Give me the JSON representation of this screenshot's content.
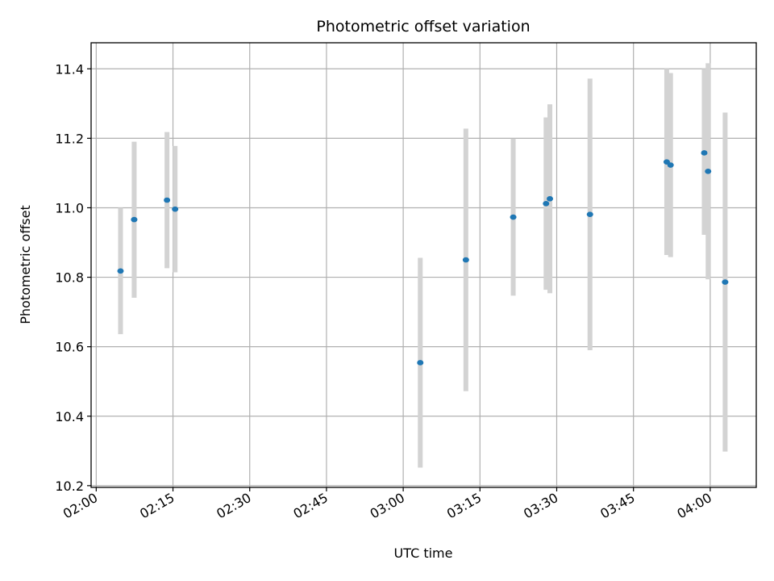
{
  "chart_data": {
    "type": "scatter",
    "title": "Photometric offset variation",
    "xlabel": "UTC time",
    "ylabel": "Photometric offset",
    "xlim": [
      "01:59",
      "04:09"
    ],
    "ylim": [
      10.195,
      11.475
    ],
    "x_ticks": [
      "02:00",
      "02:15",
      "02:30",
      "02:45",
      "03:00",
      "03:15",
      "03:30",
      "03:45",
      "04:00"
    ],
    "y_ticks": [
      "10.2",
      "10.4",
      "10.6",
      "10.8",
      "11.0",
      "11.2",
      "11.4"
    ],
    "grid": true,
    "colors": {
      "marker": "#1f77b4",
      "errorbar": "#d3d3d3"
    },
    "points": [
      {
        "x": "02:04:45",
        "y": 10.818,
        "ylow": 10.636,
        "yhigh": 11.0
      },
      {
        "x": "02:07:25",
        "y": 10.966,
        "ylow": 10.741,
        "yhigh": 11.19
      },
      {
        "x": "02:13:50",
        "y": 11.022,
        "ylow": 10.826,
        "yhigh": 11.218
      },
      {
        "x": "02:15:25",
        "y": 10.996,
        "ylow": 10.814,
        "yhigh": 11.178
      },
      {
        "x": "03:03:20",
        "y": 10.554,
        "ylow": 10.252,
        "yhigh": 10.856
      },
      {
        "x": "03:12:15",
        "y": 10.85,
        "ylow": 10.472,
        "yhigh": 11.228
      },
      {
        "x": "03:21:30",
        "y": 10.973,
        "ylow": 10.747,
        "yhigh": 11.199
      },
      {
        "x": "03:27:55",
        "y": 11.012,
        "ylow": 10.764,
        "yhigh": 11.26
      },
      {
        "x": "03:28:40",
        "y": 11.026,
        "ylow": 10.754,
        "yhigh": 11.298
      },
      {
        "x": "03:36:30",
        "y": 10.981,
        "ylow": 10.59,
        "yhigh": 11.372
      },
      {
        "x": "03:51:30",
        "y": 11.132,
        "ylow": 10.864,
        "yhigh": 11.4
      },
      {
        "x": "03:52:15",
        "y": 11.123,
        "ylow": 10.858,
        "yhigh": 11.388
      },
      {
        "x": "03:58:50",
        "y": 11.158,
        "ylow": 10.922,
        "yhigh": 11.4
      },
      {
        "x": "03:59:35",
        "y": 11.105,
        "ylow": 10.794,
        "yhigh": 11.416
      },
      {
        "x": "04:02:55",
        "y": 10.786,
        "ylow": 10.298,
        "yhigh": 11.274
      }
    ]
  }
}
